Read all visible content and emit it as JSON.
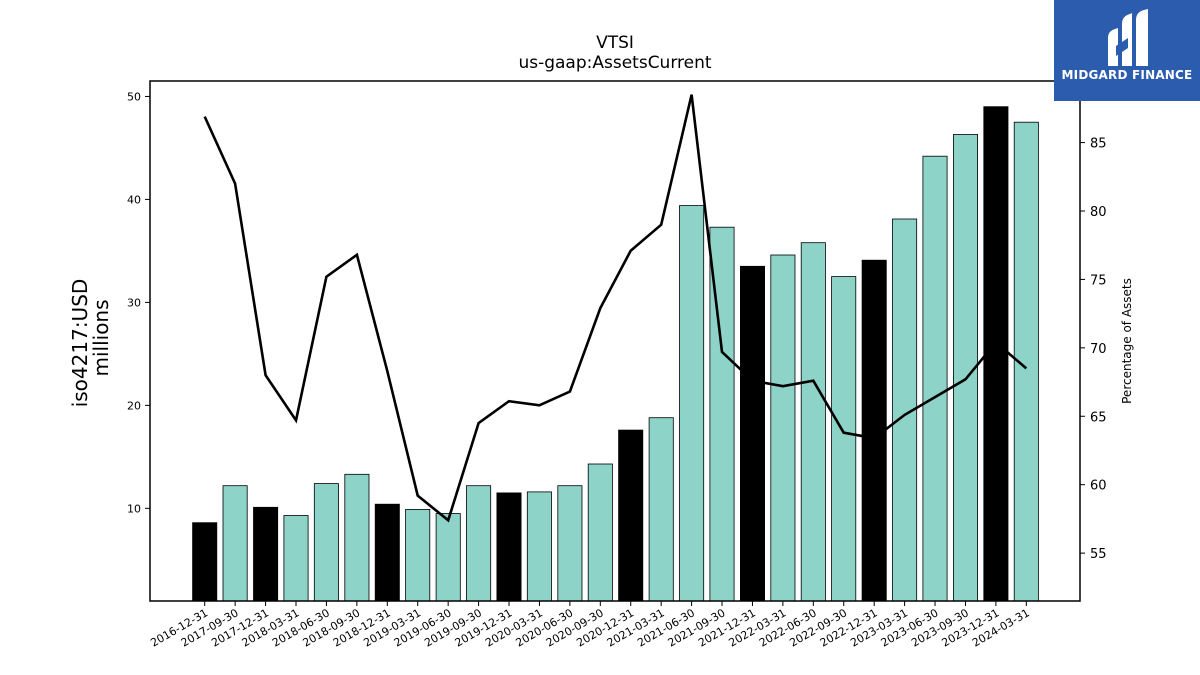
{
  "chart_data": {
    "type": "bar",
    "title": "VTSI",
    "subtitle": "us-gaap:AssetsCurrent",
    "ylabel": "iso4217:USD",
    "ylabel_unit": "millions",
    "y2label": "Percentage of Assets",
    "categories": [
      "2016-12-31",
      "2017-09-30",
      "2017-12-31",
      "2018-03-31",
      "2018-06-30",
      "2018-09-30",
      "2018-12-31",
      "2019-03-31",
      "2019-06-30",
      "2019-09-30",
      "2019-12-31",
      "2020-03-31",
      "2020-06-30",
      "2020-09-30",
      "2020-12-31",
      "2021-03-31",
      "2021-06-30",
      "2021-09-30",
      "2021-12-31",
      "2022-03-31",
      "2022-06-30",
      "2022-09-30",
      "2022-12-31",
      "2023-03-31",
      "2023-06-30",
      "2023-09-30",
      "2023-12-31",
      "2024-03-31"
    ],
    "series": [
      {
        "axis": "left",
        "kind": "bar",
        "values": [
          8.6,
          12.2,
          10.1,
          9.3,
          12.4,
          13.3,
          10.4,
          9.9,
          9.5,
          12.2,
          11.5,
          11.6,
          12.2,
          14.3,
          17.6,
          18.8,
          39.4,
          37.3,
          33.5,
          34.6,
          35.8,
          32.5,
          34.1,
          38.1,
          44.2,
          46.3,
          49.0,
          47.5
        ]
      },
      {
        "axis": "right",
        "kind": "line",
        "values": [
          86.9,
          82.0,
          68.0,
          64.7,
          75.2,
          76.8,
          68.3,
          59.2,
          57.4,
          64.5,
          66.1,
          65.8,
          66.8,
          72.9,
          77.1,
          79.0,
          88.5,
          69.7,
          67.6,
          67.2,
          67.6,
          63.8,
          63.4,
          65.1,
          66.4,
          67.7,
          70.4,
          68.5
        ]
      }
    ],
    "bar_highlight": [
      true,
      false,
      true,
      false,
      false,
      false,
      true,
      false,
      false,
      false,
      true,
      false,
      false,
      false,
      true,
      false,
      false,
      false,
      true,
      false,
      false,
      false,
      true,
      false,
      false,
      false,
      true,
      false
    ],
    "colors": {
      "bar_default": "#8dd3c7",
      "bar_highlight": "#000000",
      "line": "#000000"
    },
    "ylim": [
      1,
      51.5
    ],
    "y2lim": [
      51.5,
      89.5
    ],
    "yticks": [
      10,
      20,
      30,
      40,
      50
    ],
    "y2ticks": [
      55,
      60,
      65,
      70,
      75,
      80,
      85
    ],
    "grid": false,
    "legend": "none"
  },
  "logo": {
    "text": "MIDGARD FINANCE"
  }
}
